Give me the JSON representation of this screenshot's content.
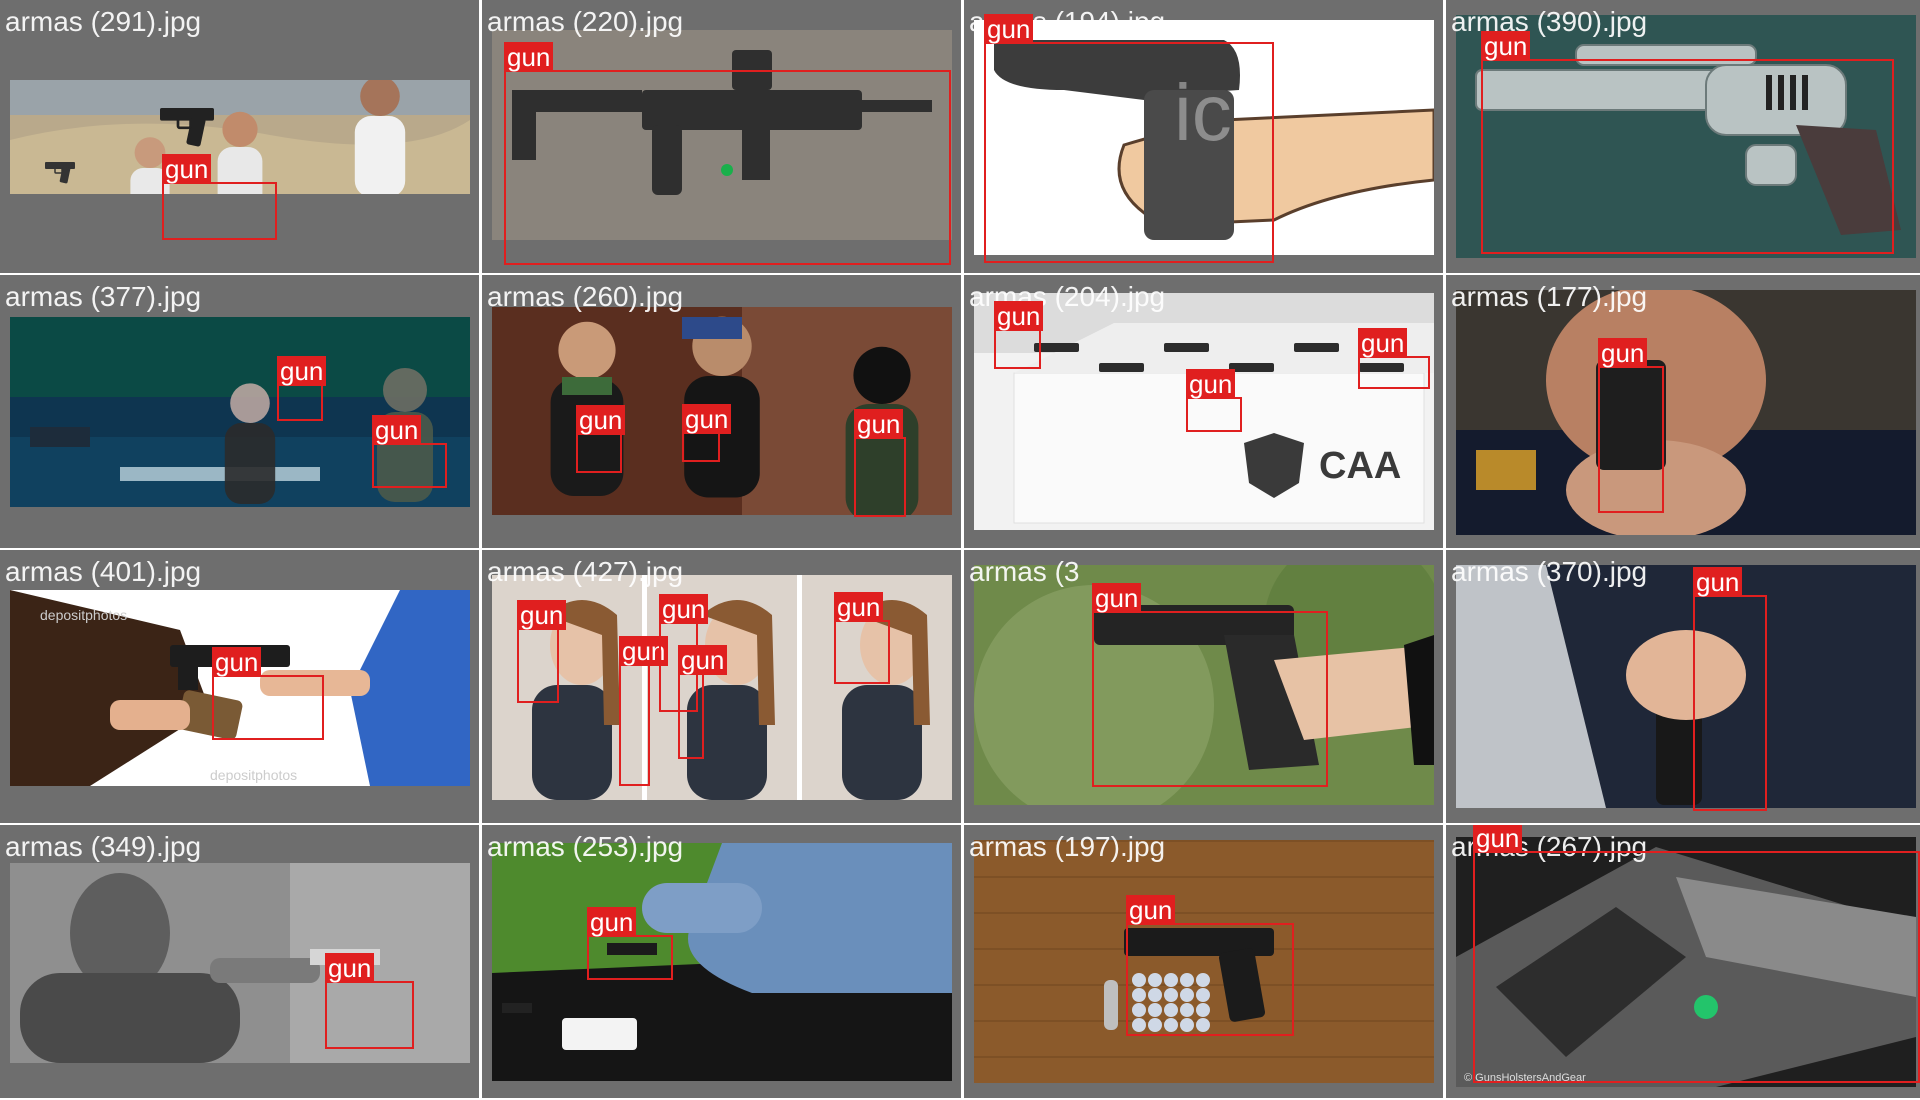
{
  "label_color": "#e01f1f",
  "cells": [
    {
      "filename": "armas (291).jpg",
      "photo_key": "desert",
      "detections": [
        {
          "label": "gun"
        }
      ]
    },
    {
      "filename": "armas (220).jpg",
      "photo_key": "rifle",
      "detections": [
        {
          "label": "gun"
        }
      ]
    },
    {
      "filename": "armas (194).jpg",
      "photo_key": "cartoon",
      "detections": [
        {
          "label": "gun"
        }
      ]
    },
    {
      "filename": "armas (390).jpg",
      "photo_key": "scifi",
      "detections": [
        {
          "label": "gun"
        }
      ]
    },
    {
      "filename": "armas (377).jpg",
      "photo_key": "movie",
      "detections": [
        {
          "label": "gun"
        },
        {
          "label": "gun"
        }
      ]
    },
    {
      "filename": "armas (260).jpg",
      "photo_key": "thugs",
      "detections": [
        {
          "label": "gun"
        },
        {
          "label": "gun"
        },
        {
          "label": "gun"
        }
      ]
    },
    {
      "filename": "armas (204).jpg",
      "photo_key": "showroom",
      "detections": [
        {
          "label": "gun"
        },
        {
          "label": "gun"
        },
        {
          "label": "gun"
        }
      ]
    },
    {
      "filename": "armas (177).jpg",
      "photo_key": "police",
      "detections": [
        {
          "label": "gun"
        }
      ]
    },
    {
      "filename": "armas (401).jpg",
      "photo_key": "robbery",
      "detections": [
        {
          "label": "gun"
        }
      ]
    },
    {
      "filename": "armas (427).jpg",
      "photo_key": "women",
      "detections": [
        {
          "label": "gun"
        },
        {
          "label": "gun"
        },
        {
          "label": "gun"
        },
        {
          "label": "gun"
        },
        {
          "label": "gun"
        }
      ]
    },
    {
      "filename": "armas (3",
      "photo_key": "handgreen",
      "detections": [
        {
          "label": "gun"
        }
      ]
    },
    {
      "filename": "armas (370).jpg",
      "photo_key": "suit",
      "detections": [
        {
          "label": "gun"
        }
      ]
    },
    {
      "filename": "armas (349).jpg",
      "photo_key": "bw",
      "detections": [
        {
          "label": "gun"
        }
      ]
    },
    {
      "filename": "armas (253).jpg",
      "photo_key": "grass",
      "detections": [
        {
          "label": "gun"
        }
      ]
    },
    {
      "filename": "armas (197).jpg",
      "photo_key": "wood",
      "detections": [
        {
          "label": "gun"
        }
      ]
    },
    {
      "filename": "armas (267).jpg",
      "photo_key": "closeup",
      "detections": [
        {
          "label": "gun"
        }
      ]
    }
  ]
}
